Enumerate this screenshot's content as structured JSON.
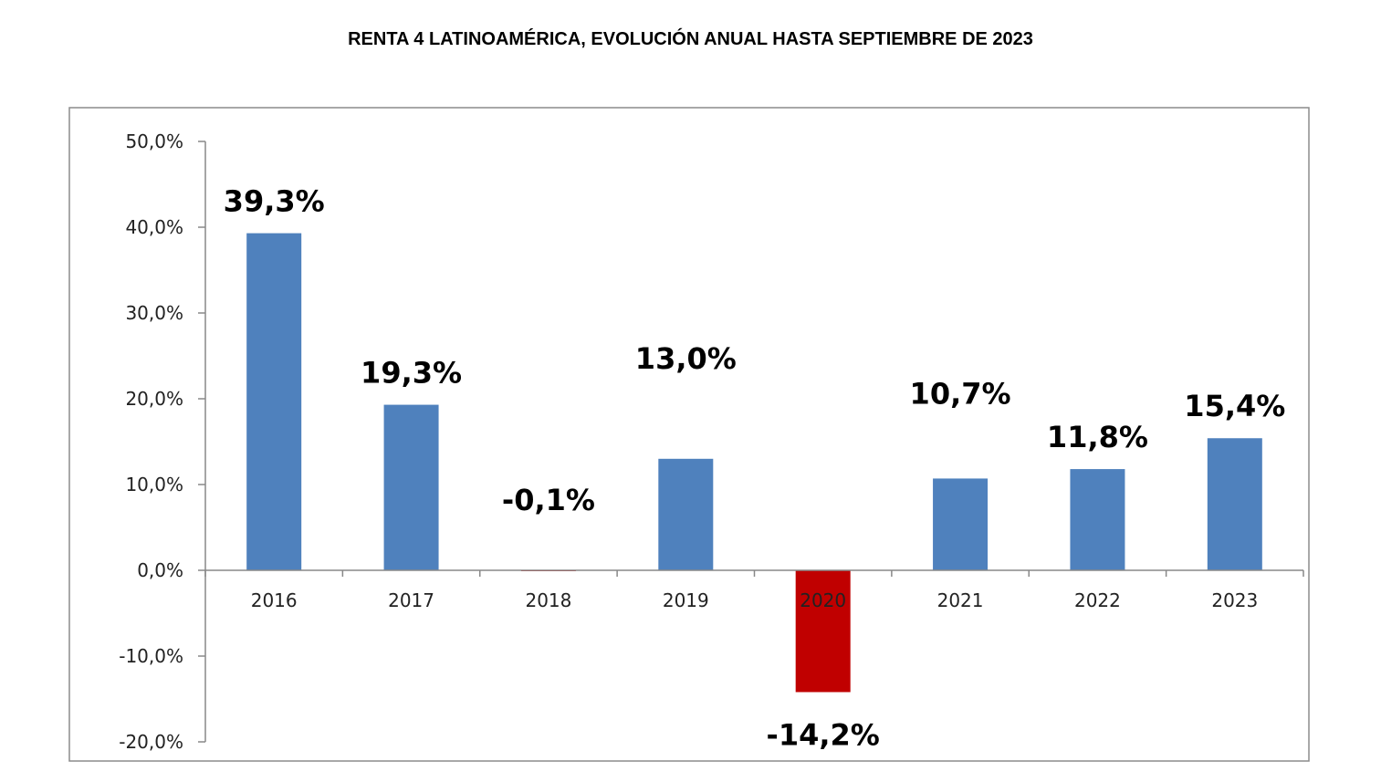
{
  "chart_data": {
    "type": "bar",
    "title": "RENTA 4 LATINOAMÉRICA, EVOLUCIÓN ANUAL HASTA SEPTIEMBRE DE 2023",
    "categories": [
      "2016",
      "2017",
      "2018",
      "2019",
      "2020",
      "2021",
      "2022",
      "2023"
    ],
    "values": [
      39.3,
      19.3,
      -0.1,
      13.0,
      -14.2,
      10.7,
      11.8,
      15.4
    ],
    "data_labels": [
      "39,3%",
      "19,3%",
      "-0,1%",
      "13,0%",
      "-14,2%",
      "10,7%",
      "11,8%",
      "15,4%"
    ],
    "ylim": [
      -20,
      50
    ],
    "yticks": [
      50,
      40,
      30,
      20,
      10,
      0,
      -10,
      -20
    ],
    "ytick_labels": [
      "50,0%",
      "40,0%",
      "30,0%",
      "20,0%",
      "10,0%",
      "0,0%",
      "-10,0%",
      "-20,0%"
    ],
    "xlabel": "",
    "ylabel": "",
    "grid": false,
    "colors": {
      "positive": "#4f81bd",
      "negative": "#c00000",
      "axis": "#888888",
      "frame": "#8c8c8c"
    }
  }
}
